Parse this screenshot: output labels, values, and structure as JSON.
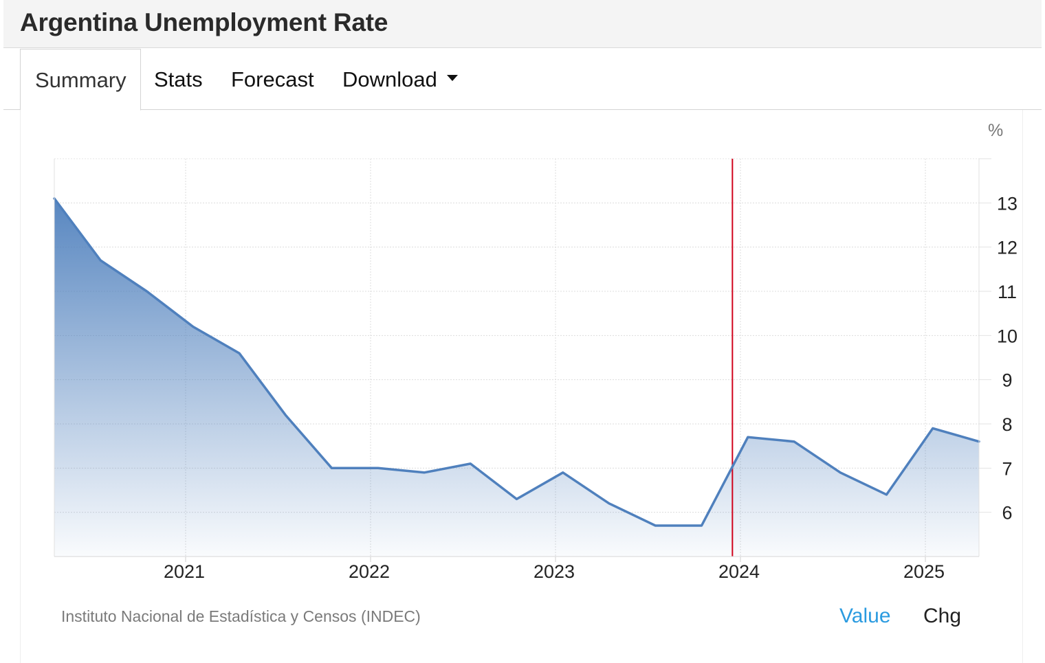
{
  "header": {
    "title": "Argentina Unemployment Rate"
  },
  "tabs": [
    {
      "label": "Summary",
      "active": true
    },
    {
      "label": "Stats"
    },
    {
      "label": "Forecast"
    },
    {
      "label": "Download",
      "dropdown": true
    }
  ],
  "chart_data": {
    "type": "area",
    "unit_label": "%",
    "x": [
      "2020-Q2",
      "2020-Q3",
      "2020-Q4",
      "2021-Q1",
      "2021-Q2",
      "2021-Q3",
      "2021-Q4",
      "2022-Q1",
      "2022-Q2",
      "2022-Q3",
      "2022-Q4",
      "2023-Q1",
      "2023-Q2",
      "2023-Q3",
      "2023-Q4",
      "2024-Q1",
      "2024-Q2",
      "2024-Q3",
      "2024-Q4",
      "2025-Q1",
      "2025-Q2"
    ],
    "series": [
      {
        "values": [
          13.1,
          11.7,
          11.0,
          10.2,
          9.6,
          8.2,
          7.0,
          7.0,
          6.9,
          7.1,
          6.3,
          6.9,
          6.2,
          5.7,
          5.7,
          7.7,
          7.6,
          6.9,
          6.4,
          7.9,
          7.6
        ]
      }
    ],
    "x_ticks": [
      "2021",
      "2022",
      "2023",
      "2024",
      "2025"
    ],
    "y_ticks": [
      6,
      7,
      8,
      9,
      10,
      11,
      12,
      13
    ],
    "ylim": [
      5,
      14
    ],
    "y_axis_side": "right",
    "grid": true,
    "marker_line": {
      "x": "2023-12",
      "color": "#d0021b"
    },
    "line_color": "#4f80bd",
    "fill_top_color": "#4f80bd",
    "fill_bottom_color": "#ffffff"
  },
  "footer": {
    "source": "Instituto Nacional de Estadística y Censos (INDEC)",
    "value_label": "Value",
    "chg_label": "Chg"
  },
  "colors": {
    "accent": "#2b9be0",
    "line": "#4f80bd",
    "marker": "#d0021b"
  }
}
